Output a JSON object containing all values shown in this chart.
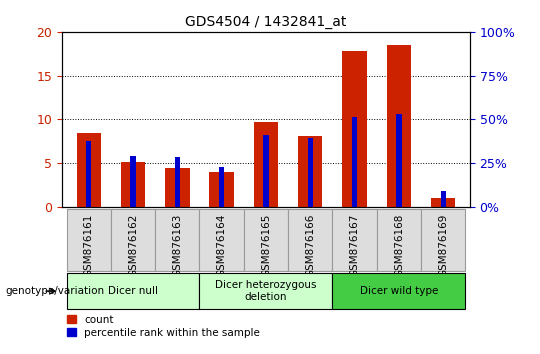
{
  "title": "GDS4504 / 1432841_at",
  "samples": [
    "GSM876161",
    "GSM876162",
    "GSM876163",
    "GSM876164",
    "GSM876165",
    "GSM876166",
    "GSM876167",
    "GSM876168",
    "GSM876169"
  ],
  "count_values": [
    8.5,
    5.2,
    4.5,
    4.0,
    9.7,
    8.1,
    17.8,
    18.5,
    1.0
  ],
  "percentile_values": [
    37.5,
    29.0,
    28.5,
    23.0,
    41.0,
    39.5,
    51.5,
    53.0,
    9.0
  ],
  "ylim_left": [
    0,
    20
  ],
  "ylim_right": [
    0,
    100
  ],
  "yticks_left": [
    0,
    5,
    10,
    15,
    20
  ],
  "yticks_right": [
    0,
    25,
    50,
    75,
    100
  ],
  "bar_color_red": "#cc2200",
  "bar_color_blue": "#0000cc",
  "red_bar_width": 0.55,
  "blue_bar_width": 0.12,
  "groups": [
    {
      "label": "Dicer null",
      "start": 0,
      "end": 2,
      "color": "#ccffcc"
    },
    {
      "label": "Dicer heterozygous\ndeletion",
      "start": 3,
      "end": 5,
      "color": "#ccffcc"
    },
    {
      "label": "Dicer wild type",
      "start": 6,
      "end": 8,
      "color": "#44cc44"
    }
  ],
  "group_label": "genotype/variation",
  "legend_count": "count",
  "legend_percentile": "percentile rank within the sample",
  "title_fontsize": 10,
  "tick_label_fontsize": 7.5,
  "axis_color_left": "#cc2200",
  "axis_color_right": "#0000cc",
  "grid_color": "#000000",
  "xtick_bg_color": "#dddddd",
  "xtick_border_color": "#999999"
}
